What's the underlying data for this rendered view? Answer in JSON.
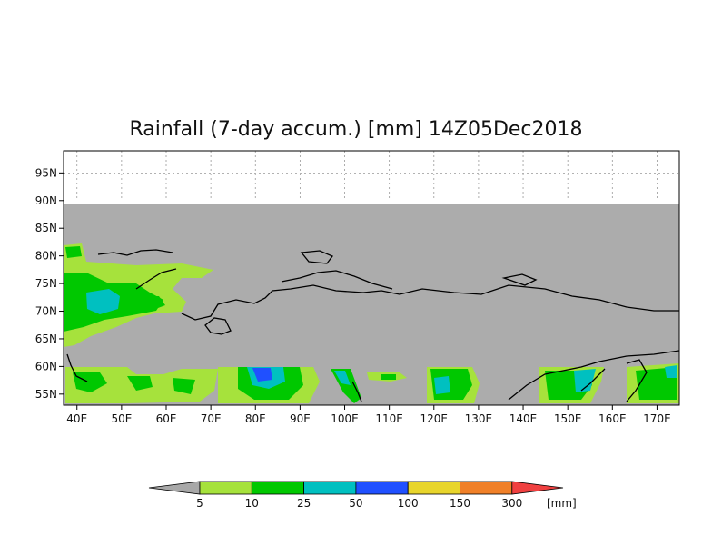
{
  "title": "Rainfall (7-day accum.) [mm] 14Z05Dec2018",
  "map": {
    "lat_range": [
      53,
      99
    ],
    "lon_range": [
      37,
      175
    ],
    "data_mask_lat_range": [
      53,
      90
    ],
    "lat_ticks": [
      "95N",
      "90N",
      "85N",
      "80N",
      "75N",
      "70N",
      "65N",
      "60N",
      "55N"
    ],
    "lon_ticks": [
      "40E",
      "50E",
      "60E",
      "70E",
      "80E",
      "90E",
      "100E",
      "110E",
      "120E",
      "130E",
      "140E",
      "150E",
      "160E",
      "170E"
    ],
    "grid": "dotted",
    "no_data_color": "#acacac"
  },
  "legend": {
    "breaks": [
      "5",
      "10",
      "25",
      "50",
      "100",
      "150",
      "300"
    ],
    "unit": "[mm]",
    "colors": [
      "#a8a8a8",
      "#a6e23c",
      "#00c800",
      "#00c0c0",
      "#2050ff",
      "#e8d52c",
      "#f08028",
      "#f04040"
    ]
  }
}
